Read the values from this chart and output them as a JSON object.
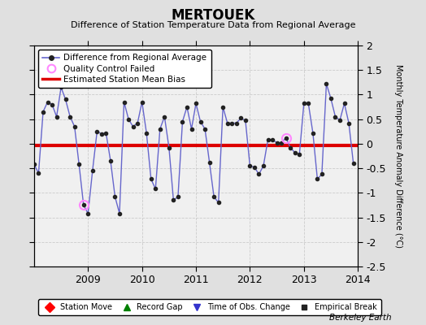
{
  "title": "MERTOUEK",
  "subtitle": "Difference of Station Temperature Data from Regional Average",
  "ylabel_right": "Monthly Temperature Anomaly Difference (°C)",
  "credit": "Berkeley Earth",
  "ylim": [
    -2.5,
    2.0
  ],
  "yticks": [
    -2.5,
    -2.0,
    -1.5,
    -1.0,
    -0.5,
    0.0,
    0.5,
    1.0,
    1.5,
    2.0
  ],
  "mean_bias": -0.03,
  "bg_color": "#e0e0e0",
  "plot_bg_color": "#f0f0f0",
  "line_color": "#6666cc",
  "bias_color": "#dd0000",
  "qc_color": "#ff88ff",
  "times": [
    2008.0,
    2008.083,
    2008.167,
    2008.25,
    2008.333,
    2008.417,
    2008.5,
    2008.583,
    2008.667,
    2008.75,
    2008.833,
    2008.917,
    2009.0,
    2009.083,
    2009.167,
    2009.25,
    2009.333,
    2009.417,
    2009.5,
    2009.583,
    2009.667,
    2009.75,
    2009.833,
    2009.917,
    2010.0,
    2010.083,
    2010.167,
    2010.25,
    2010.333,
    2010.417,
    2010.5,
    2010.583,
    2010.667,
    2010.75,
    2010.833,
    2010.917,
    2011.0,
    2011.083,
    2011.167,
    2011.25,
    2011.333,
    2011.417,
    2011.5,
    2011.583,
    2011.667,
    2011.75,
    2011.833,
    2011.917,
    2012.0,
    2012.083,
    2012.167,
    2012.25,
    2012.333,
    2012.417,
    2012.5,
    2012.583,
    2012.667,
    2012.75,
    2012.833,
    2012.917,
    2013.0,
    2013.083,
    2013.167,
    2013.25,
    2013.333,
    2013.417,
    2013.5,
    2013.583,
    2013.667,
    2013.75,
    2013.833,
    2013.917
  ],
  "values": [
    -0.42,
    -0.6,
    0.65,
    0.85,
    0.8,
    0.55,
    1.15,
    0.9,
    0.55,
    0.35,
    -0.42,
    -1.25,
    -1.42,
    -0.55,
    0.25,
    0.2,
    0.22,
    -0.35,
    -1.08,
    -1.42,
    0.85,
    0.5,
    0.35,
    0.42,
    0.85,
    0.22,
    -0.72,
    -0.92,
    0.3,
    0.55,
    -0.08,
    -1.15,
    -1.08,
    0.45,
    0.75,
    0.3,
    0.82,
    0.45,
    0.3,
    -0.38,
    -1.08,
    -1.2,
    0.75,
    0.42,
    0.42,
    0.42,
    0.52,
    0.47,
    -0.45,
    -0.48,
    -0.62,
    -0.45,
    0.08,
    0.08,
    0.02,
    0.02,
    0.12,
    -0.08,
    -0.18,
    -0.22,
    0.82,
    0.82,
    0.22,
    -0.72,
    -0.62,
    1.22,
    0.92,
    0.55,
    0.48,
    0.82,
    0.42,
    -0.4
  ],
  "qc_failed_indices": [
    11,
    56
  ],
  "xlim_left": 2008.0,
  "xlim_right": 2014.0,
  "xticks": [
    2009,
    2010,
    2011,
    2012,
    2013,
    2014
  ]
}
